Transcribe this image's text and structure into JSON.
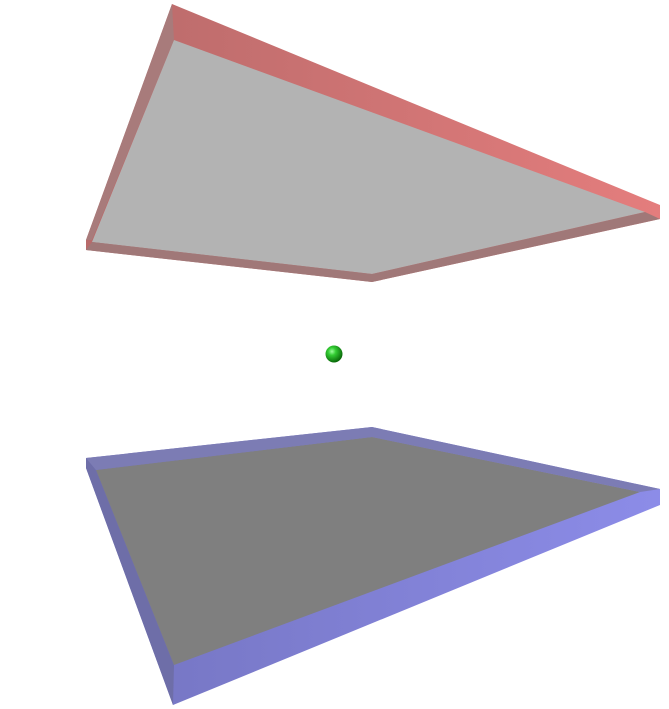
{
  "scene": {
    "background_color": "#ffffff",
    "objects": [
      {
        "name": "top-plate",
        "kind": "slab",
        "edge_color": "#c97a7a",
        "face_color": "#b3b3b3"
      },
      {
        "name": "center-sphere",
        "kind": "sphere",
        "color": "#1aa31a"
      },
      {
        "name": "bottom-plate",
        "kind": "slab",
        "edge_color": "#8080c8",
        "face_color": "#808080"
      }
    ]
  }
}
